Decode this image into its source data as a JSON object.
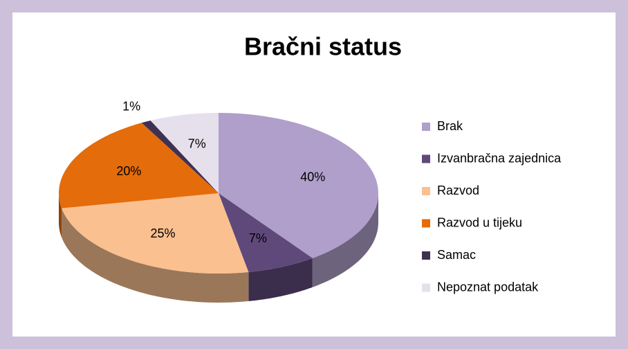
{
  "chart_data": {
    "type": "pie3d",
    "title": "Bračni status",
    "categories": [
      "Brak",
      "Izvanbračna zajednica",
      "Razvod",
      "Razvod u tijeku",
      "Samac",
      "Nepoznat podatak"
    ],
    "values": [
      40,
      7,
      25,
      20,
      1,
      7
    ],
    "value_labels": [
      "40%",
      "7%",
      "25%",
      "20%",
      "1%",
      "7%"
    ],
    "colors": [
      "#b09fca",
      "#5f497a",
      "#fac090",
      "#e46c0a",
      "#3f3151",
      "#e6e0ec"
    ],
    "legend": "right"
  }
}
